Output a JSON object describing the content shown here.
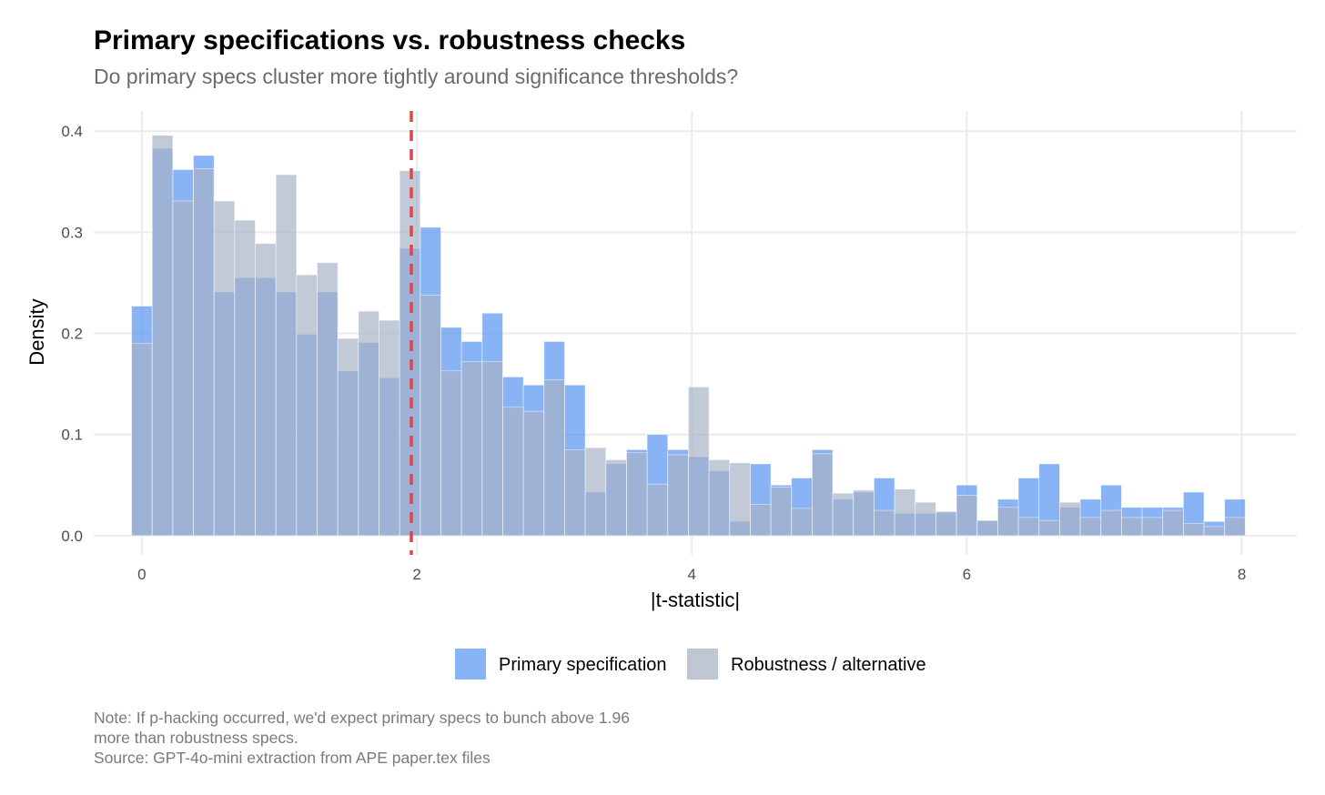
{
  "colors": {
    "primary_fill": "#4f8ff0",
    "robustness_fill": "#a7b1c4",
    "threshold_line": "#e0454b",
    "grid": "#ebebeb"
  },
  "chart_data": {
    "type": "histogram",
    "title": "Primary specifications vs. robustness checks",
    "subtitle": "Do primary specs cluster more tightly around significance thresholds?",
    "xlabel": "|t-statistic|",
    "ylabel": "Density",
    "xlim": [
      -0.35,
      8.4
    ],
    "ylim": [
      -0.019,
      0.42
    ],
    "bin_width": 0.15,
    "first_bin_start": -0.075,
    "x_ticks": [
      {
        "value": 0,
        "label": "0"
      },
      {
        "value": 2,
        "label": "2"
      },
      {
        "value": 4,
        "label": "4"
      },
      {
        "value": 6,
        "label": "6"
      },
      {
        "value": 8,
        "label": "8"
      }
    ],
    "y_ticks": [
      {
        "value": 0.0,
        "label": "0.0"
      },
      {
        "value": 0.1,
        "label": "0.1"
      },
      {
        "value": 0.2,
        "label": "0.2"
      },
      {
        "value": 0.3,
        "label": "0.3"
      },
      {
        "value": 0.4,
        "label": "0.4"
      }
    ],
    "reference_line": {
      "x": 1.96,
      "style": "dashed"
    },
    "legend_position": "bottom",
    "series": [
      {
        "name": "Primary specification",
        "color": "#4f8ff0",
        "values": [
          0.227,
          0.383,
          0.362,
          0.376,
          0.241,
          0.255,
          0.255,
          0.241,
          0.199,
          0.241,
          0.163,
          0.191,
          0.156,
          0.284,
          0.305,
          0.206,
          0.192,
          0.22,
          0.157,
          0.149,
          0.192,
          0.149,
          0.043,
          0.071,
          0.085,
          0.1,
          0.085,
          0.078,
          0.064,
          0.014,
          0.071,
          0.05,
          0.057,
          0.085,
          0.036,
          0.043,
          0.057,
          0.022,
          0.022,
          0.023,
          0.05,
          0.015,
          0.036,
          0.057,
          0.071,
          0.028,
          0.036,
          0.05,
          0.028,
          0.028,
          0.028,
          0.043,
          0.014,
          0.036
        ]
      },
      {
        "name": "Robustness / alternative",
        "color": "#a7b1c4",
        "values": [
          0.19,
          0.396,
          0.331,
          0.363,
          0.331,
          0.312,
          0.289,
          0.357,
          0.258,
          0.27,
          0.195,
          0.222,
          0.213,
          0.361,
          0.238,
          0.163,
          0.172,
          0.172,
          0.127,
          0.123,
          0.154,
          0.085,
          0.087,
          0.075,
          0.082,
          0.051,
          0.08,
          0.147,
          0.075,
          0.072,
          0.031,
          0.048,
          0.027,
          0.081,
          0.042,
          0.045,
          0.025,
          0.046,
          0.033,
          0.024,
          0.04,
          0.015,
          0.028,
          0.018,
          0.015,
          0.033,
          0.018,
          0.025,
          0.018,
          0.018,
          0.025,
          0.012,
          0.009,
          0.018
        ]
      }
    ]
  },
  "caption": {
    "lines": [
      "Note: If p-hacking occurred, we'd expect primary specs to bunch above 1.96",
      "more than robustness specs.",
      "Source: GPT-4o-mini extraction from APE paper.tex files"
    ]
  }
}
